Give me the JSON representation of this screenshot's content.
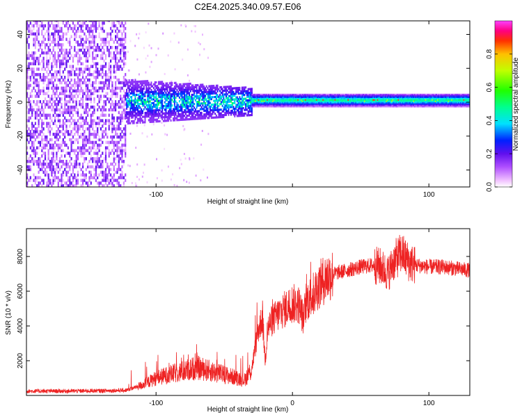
{
  "chart_data": [
    {
      "type": "heatmap",
      "title": "C2E4.2025.340.09.57.E06",
      "xlabel": "Height of straight line (km)",
      "ylabel": "Frequency (Hz)",
      "xlim": [
        -195,
        130
      ],
      "ylim": [
        -50,
        48
      ],
      "xticks": [
        -100,
        0,
        100
      ],
      "xtick_labels": [
        "-100",
        "",
        "100"
      ],
      "yticks": [
        -40,
        -20,
        0,
        20,
        40
      ],
      "ytick_labels": [
        "-40",
        "-20",
        "0",
        "20",
        "40"
      ],
      "colorbar": {
        "label": "Normalized spectral amplitude",
        "range": [
          0.0,
          1.0
        ],
        "ticks": [
          0.0,
          0.2,
          0.4,
          0.6,
          0.8
        ],
        "tick_labels": [
          "0.0",
          "0.2",
          "0.4",
          "0.6",
          "0.8"
        ],
        "colormap": "gist_ncar-like"
      },
      "regions": [
        {
          "x_range": [
            -195,
            -122
          ],
          "f_range": [
            -50,
            48
          ],
          "amplitude": 0.15,
          "description_value": "broadband noise"
        },
        {
          "x_range": [
            -122,
            -30
          ],
          "f_range": [
            -15,
            15
          ],
          "amplitude": 0.3
        },
        {
          "x_range": [
            -30,
            130
          ],
          "f_range": [
            -2,
            4
          ],
          "amplitude": 0.55
        }
      ]
    },
    {
      "type": "line",
      "xlabel": "Height of straight line (km)",
      "ylabel": "SNR (10 * v/v)",
      "xlim": [
        -195,
        130
      ],
      "ylim": [
        0,
        9600
      ],
      "xticks": [
        -100,
        0,
        100
      ],
      "xtick_labels": [
        "-100",
        "0",
        "100"
      ],
      "yticks": [
        2000,
        4000,
        6000,
        8000
      ],
      "ytick_labels": [
        "2000",
        "4000",
        "6000",
        "8000"
      ],
      "series": [
        {
          "name": "SNR",
          "color": "#ee2222",
          "x": [
            -195,
            -170,
            -140,
            -122,
            -110,
            -100,
            -90,
            -80,
            -70,
            -60,
            -50,
            -40,
            -35,
            -30,
            -25,
            -22,
            -20,
            -18,
            -15,
            -10,
            -5,
            0,
            5,
            8,
            10,
            15,
            20,
            25,
            30,
            40,
            50,
            60,
            65,
            70,
            75,
            80,
            85,
            90,
            100,
            110,
            120,
            130
          ],
          "y": [
            250,
            250,
            270,
            300,
            600,
            1000,
            1200,
            1400,
            1600,
            1400,
            1200,
            1000,
            900,
            1500,
            3800,
            4500,
            2000,
            3900,
            4300,
            4700,
            5000,
            5300,
            5200,
            4400,
            5400,
            5800,
            6400,
            6800,
            7000,
            7200,
            7400,
            7500,
            7400,
            7000,
            7800,
            8200,
            7700,
            7500,
            7400,
            7400,
            7300,
            7200
          ]
        }
      ]
    }
  ]
}
